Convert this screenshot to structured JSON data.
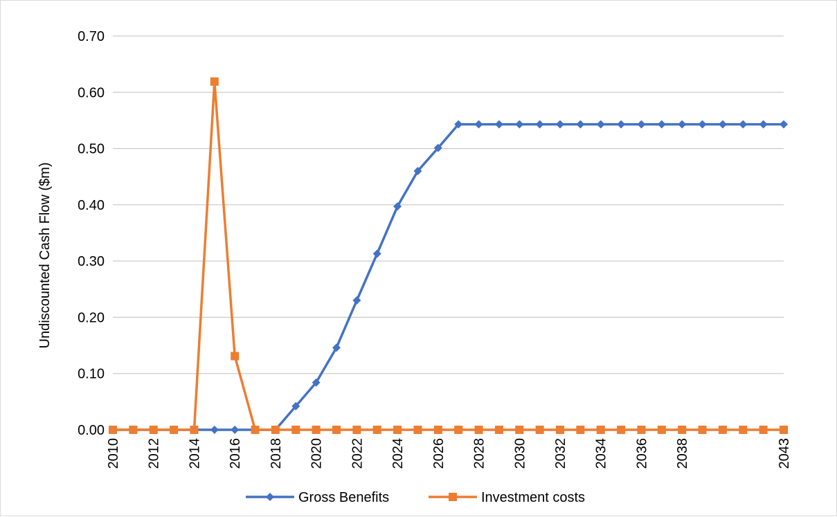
{
  "chart_data": {
    "type": "line",
    "title": "",
    "xlabel": "",
    "ylabel": "Undiscounted Cash Flow ($m)",
    "ylim": [
      0,
      0.7
    ],
    "y_ticks": [
      "0.00",
      "0.10",
      "0.20",
      "0.30",
      "0.40",
      "0.50",
      "0.60",
      "0.70"
    ],
    "x": [
      2010,
      2011,
      2012,
      2013,
      2014,
      2015,
      2016,
      2017,
      2018,
      2019,
      2020,
      2021,
      2022,
      2023,
      2024,
      2025,
      2026,
      2027,
      2028,
      2029,
      2030,
      2031,
      2032,
      2033,
      2034,
      2035,
      2036,
      2037,
      2038,
      2039,
      2040,
      2041,
      2042,
      2043
    ],
    "x_tick_labels": [
      "2010",
      "2012",
      "2014",
      "2016",
      "2018",
      "2020",
      "2022",
      "2024",
      "2026",
      "2028",
      "2030",
      "2032",
      "2034",
      "2036",
      "2038",
      "2043"
    ],
    "grid": "horizontal",
    "legend_position": "bottom",
    "series": [
      {
        "name": "Gross Benefits",
        "color": "#4472C4",
        "marker": "diamond",
        "values": [
          0,
          0,
          0,
          0,
          0,
          0,
          0,
          0,
          0,
          0.042,
          0.084,
          0.146,
          0.23,
          0.313,
          0.397,
          0.46,
          0.501,
          0.543,
          0.543,
          0.543,
          0.543,
          0.543,
          0.543,
          0.543,
          0.543,
          0.543,
          0.543,
          0.543,
          0.543,
          0.543,
          0.543,
          0.543,
          0.543,
          0.543
        ]
      },
      {
        "name": "Investment costs",
        "color": "#ED7D31",
        "marker": "square",
        "values": [
          0,
          0,
          0,
          0,
          0,
          0.619,
          0.131,
          0,
          0,
          0,
          0,
          0,
          0,
          0,
          0,
          0,
          0,
          0,
          0,
          0,
          0,
          0,
          0,
          0,
          0,
          0,
          0,
          0,
          0,
          0,
          0,
          0,
          0,
          0
        ]
      }
    ]
  }
}
